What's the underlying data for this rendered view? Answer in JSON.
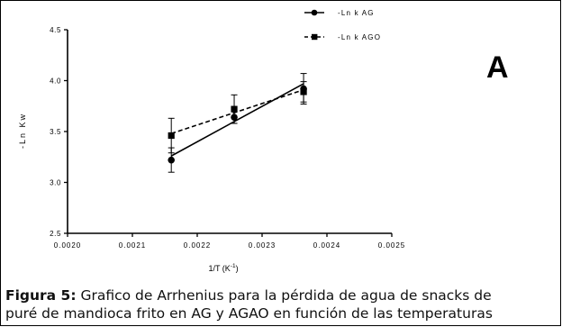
{
  "chart_data": {
    "type": "scatter",
    "panel_label": "A",
    "xlabel": "1/T (K",
    "xlabel_sup": "-1",
    "xlabel_end": ")",
    "ylabel": "-Ln Kw",
    "xlim": [
      0.002,
      0.0025
    ],
    "ylim": [
      2.5,
      4.5
    ],
    "x_ticks": [
      "0.0020",
      "0.0021",
      "0.0022",
      "0.0023",
      "0.0024",
      "0.0025"
    ],
    "y_ticks": [
      "2.5",
      "3.0",
      "3.5",
      "4.0",
      "4.5"
    ],
    "series": [
      {
        "name": "-Ln k AG",
        "marker": "circle",
        "line_style": "solid",
        "x": [
          0.00216,
          0.002257,
          0.002364
        ],
        "y": [
          3.22,
          3.64,
          3.92
        ],
        "error": [
          0.12,
          0.06,
          0.15
        ],
        "fit_y": [
          3.26,
          3.61,
          3.97
        ]
      },
      {
        "name": "-Ln k AGO",
        "marker": "square",
        "line_style": "dashed",
        "x": [
          0.00216,
          0.002257,
          0.002364
        ],
        "y": [
          3.46,
          3.72,
          3.89
        ],
        "error": [
          0.17,
          0.14,
          0.1
        ],
        "fit_y": [
          3.48,
          3.69,
          3.91
        ]
      }
    ]
  },
  "caption": {
    "label": "Figura 5:",
    "line1": " Grafico de Arrhenius para la pérdida de agua de snacks de",
    "line2": "puré de mandioca frito en AG y AGAO en función de las temperaturas"
  }
}
